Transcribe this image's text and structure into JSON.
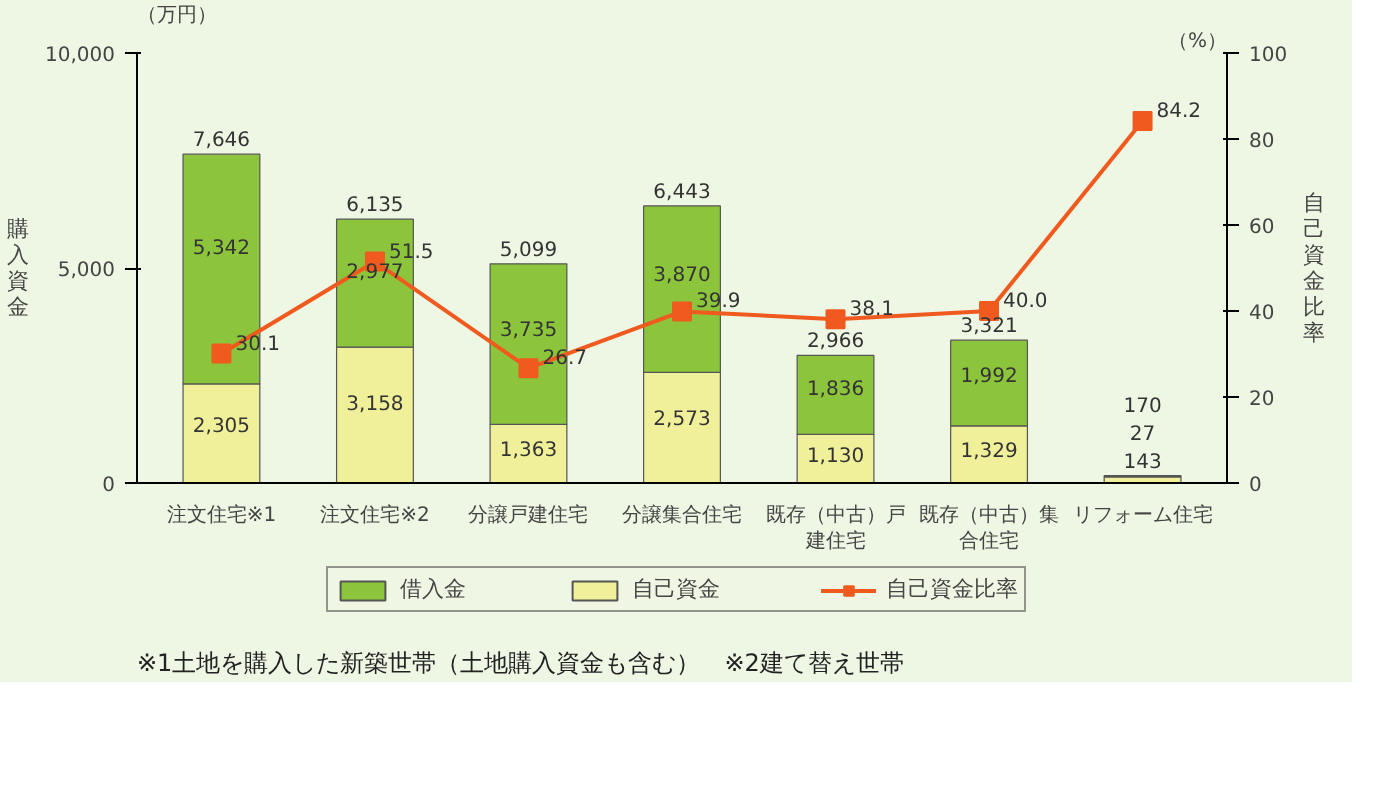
{
  "chart_data": {
    "type": "bar",
    "stacked": true,
    "categories": [
      "注文住宅※1",
      "注文住宅※2",
      "分譲戸建住宅",
      "分譲集合住宅",
      "既存（中古）戸建住宅",
      "既存（中古）集合住宅",
      "リフォーム住宅"
    ],
    "series": [
      {
        "name": "自己資金",
        "color": "#f0f09a",
        "values": [
          2305,
          3158,
          1363,
          2573,
          1130,
          1329,
          143
        ],
        "value_labels": [
          "2,305",
          "3,158",
          "1,363",
          "2,573",
          "1,130",
          "1,329",
          "143"
        ]
      },
      {
        "name": "借入金",
        "color": "#8cc43c",
        "values": [
          5342,
          2977,
          3735,
          3870,
          1836,
          1992,
          27
        ],
        "value_labels": [
          "5,342",
          "2,977",
          "3,735",
          "3,870",
          "1,836",
          "1,992",
          "27"
        ]
      },
      {
        "name": "自己資金比率",
        "type": "line",
        "axis": "y2",
        "color": "#f05a1e",
        "marker": "square",
        "values": [
          30.1,
          51.5,
          26.7,
          39.9,
          38.1,
          40.0,
          84.2
        ],
        "value_labels": [
          "30.1",
          "51.5",
          "26.7",
          "39.9",
          "38.1",
          "40.0",
          "84.2"
        ]
      }
    ],
    "totals": [
      "7,646",
      "6,135",
      "5,099",
      "6,443",
      "2,966",
      "3,321",
      "170"
    ],
    "ylabel": "購入資金",
    "y2label": "自己資金比率",
    "ylim": [
      0,
      10000
    ],
    "yticks": [
      0,
      {
        "value": 5000,
        "label": "5,000"
      },
      {
        "value": 10000,
        "label": "10,000"
      }
    ],
    "y2lim": [
      0,
      100
    ],
    "y2ticks": [
      0,
      20,
      40,
      60,
      80,
      100
    ],
    "grid": false,
    "legend": "bottom",
    "annotations": [
      "（万円）",
      "（%）",
      "※1土地を購入した新築世帯（土地購入資金も含む）　※2建て替え世帯"
    ]
  }
}
